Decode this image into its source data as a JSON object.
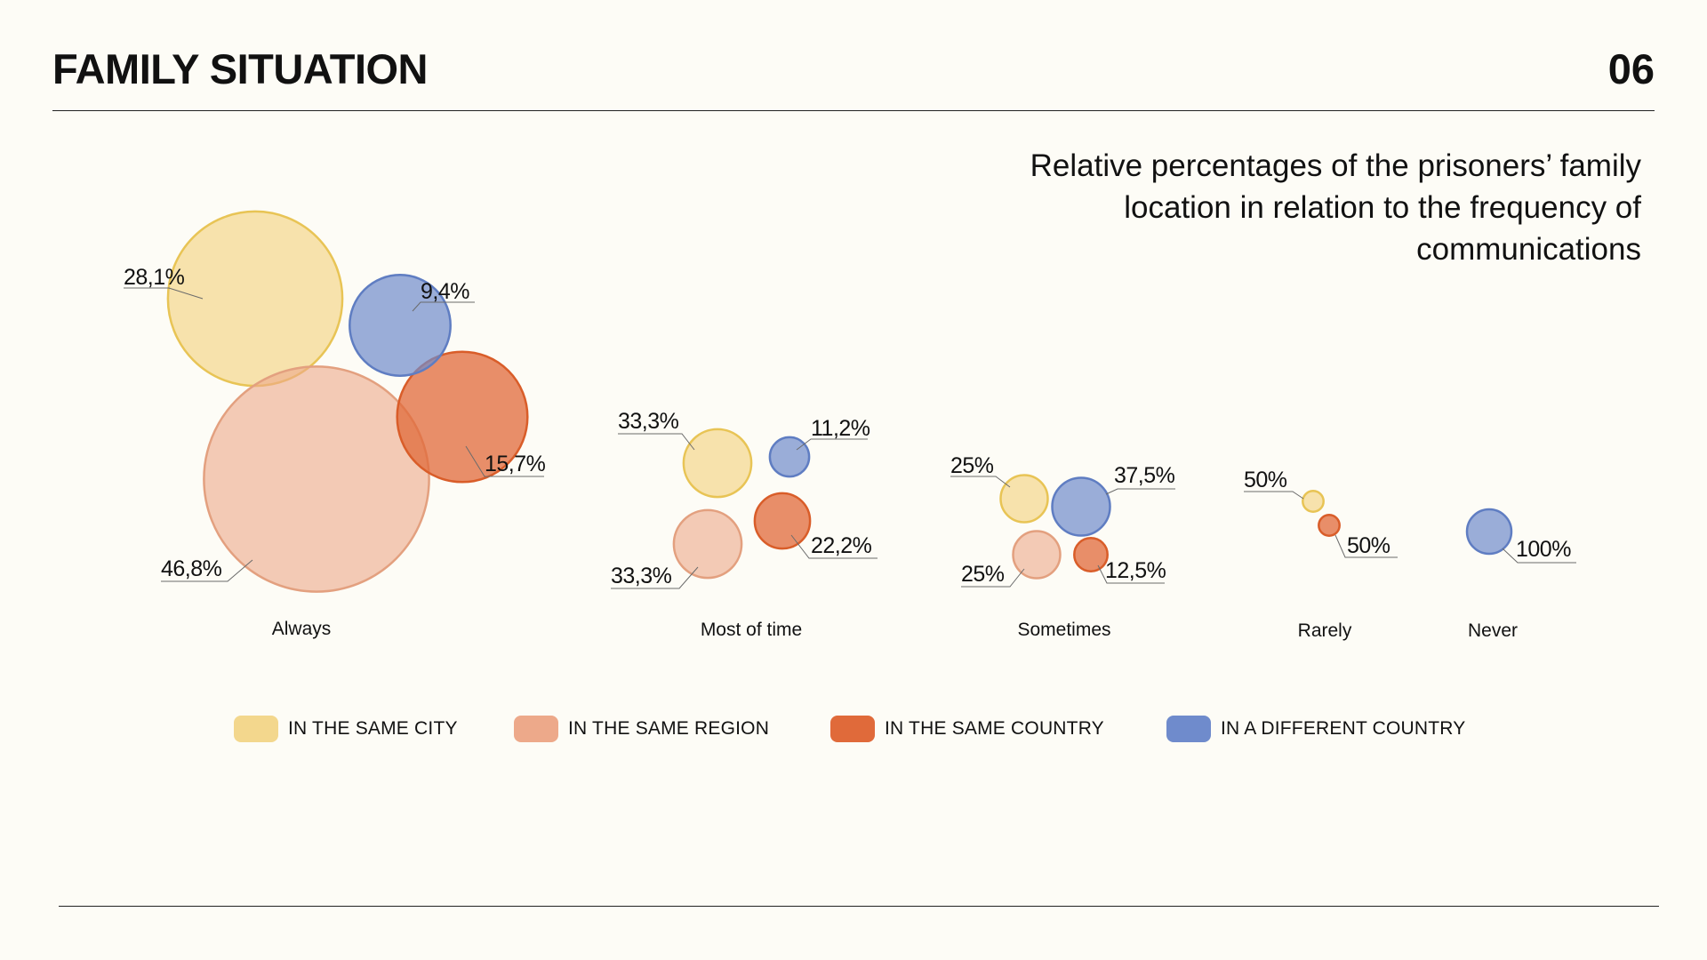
{
  "header": {
    "title": "FAMILY SITUATION",
    "page_number": "06"
  },
  "colors": {
    "same_city": "#f3d78d",
    "same_region": "#eda98a",
    "same_country": "#e06a3a",
    "different_country": "#6f8bcc",
    "text": "#111111",
    "background": "#fdfcf6"
  },
  "chart_data": {
    "type": "bubble",
    "title": "Relative percentages of the prisoners’ family location in relation to the frequency of communications",
    "categories": [
      "Always",
      "Most of time",
      "Sometimes",
      "Rarely",
      "Never"
    ],
    "series": [
      {
        "name": "IN THE SAME CITY",
        "values": [
          28.1,
          33.3,
          25,
          50,
          null
        ],
        "labels": [
          "28,1%",
          "33,3%",
          "25%",
          "50%",
          null
        ]
      },
      {
        "name": "IN THE SAME REGION",
        "values": [
          46.8,
          33.3,
          25,
          null,
          null
        ],
        "labels": [
          "46,8%",
          "33,3%",
          "25%",
          null,
          null
        ]
      },
      {
        "name": "IN THE SAME COUNTRY",
        "values": [
          15.7,
          22.2,
          12.5,
          50,
          null
        ],
        "labels": [
          "15,7%",
          "22,2%",
          "12,5%",
          "50%",
          null
        ]
      },
      {
        "name": "IN A DIFFERENT COUNTRY",
        "values": [
          9.4,
          11.2,
          37.5,
          null,
          100
        ],
        "labels": [
          "9,4%",
          "11,2%",
          "37,5%",
          null,
          "100%"
        ]
      }
    ],
    "legend_position": "bottom",
    "grid": false,
    "legend": [
      "IN THE SAME CITY",
      "IN THE SAME REGION",
      "IN THE SAME COUNTRY",
      "IN A DIFFERENT COUNTRY"
    ]
  }
}
